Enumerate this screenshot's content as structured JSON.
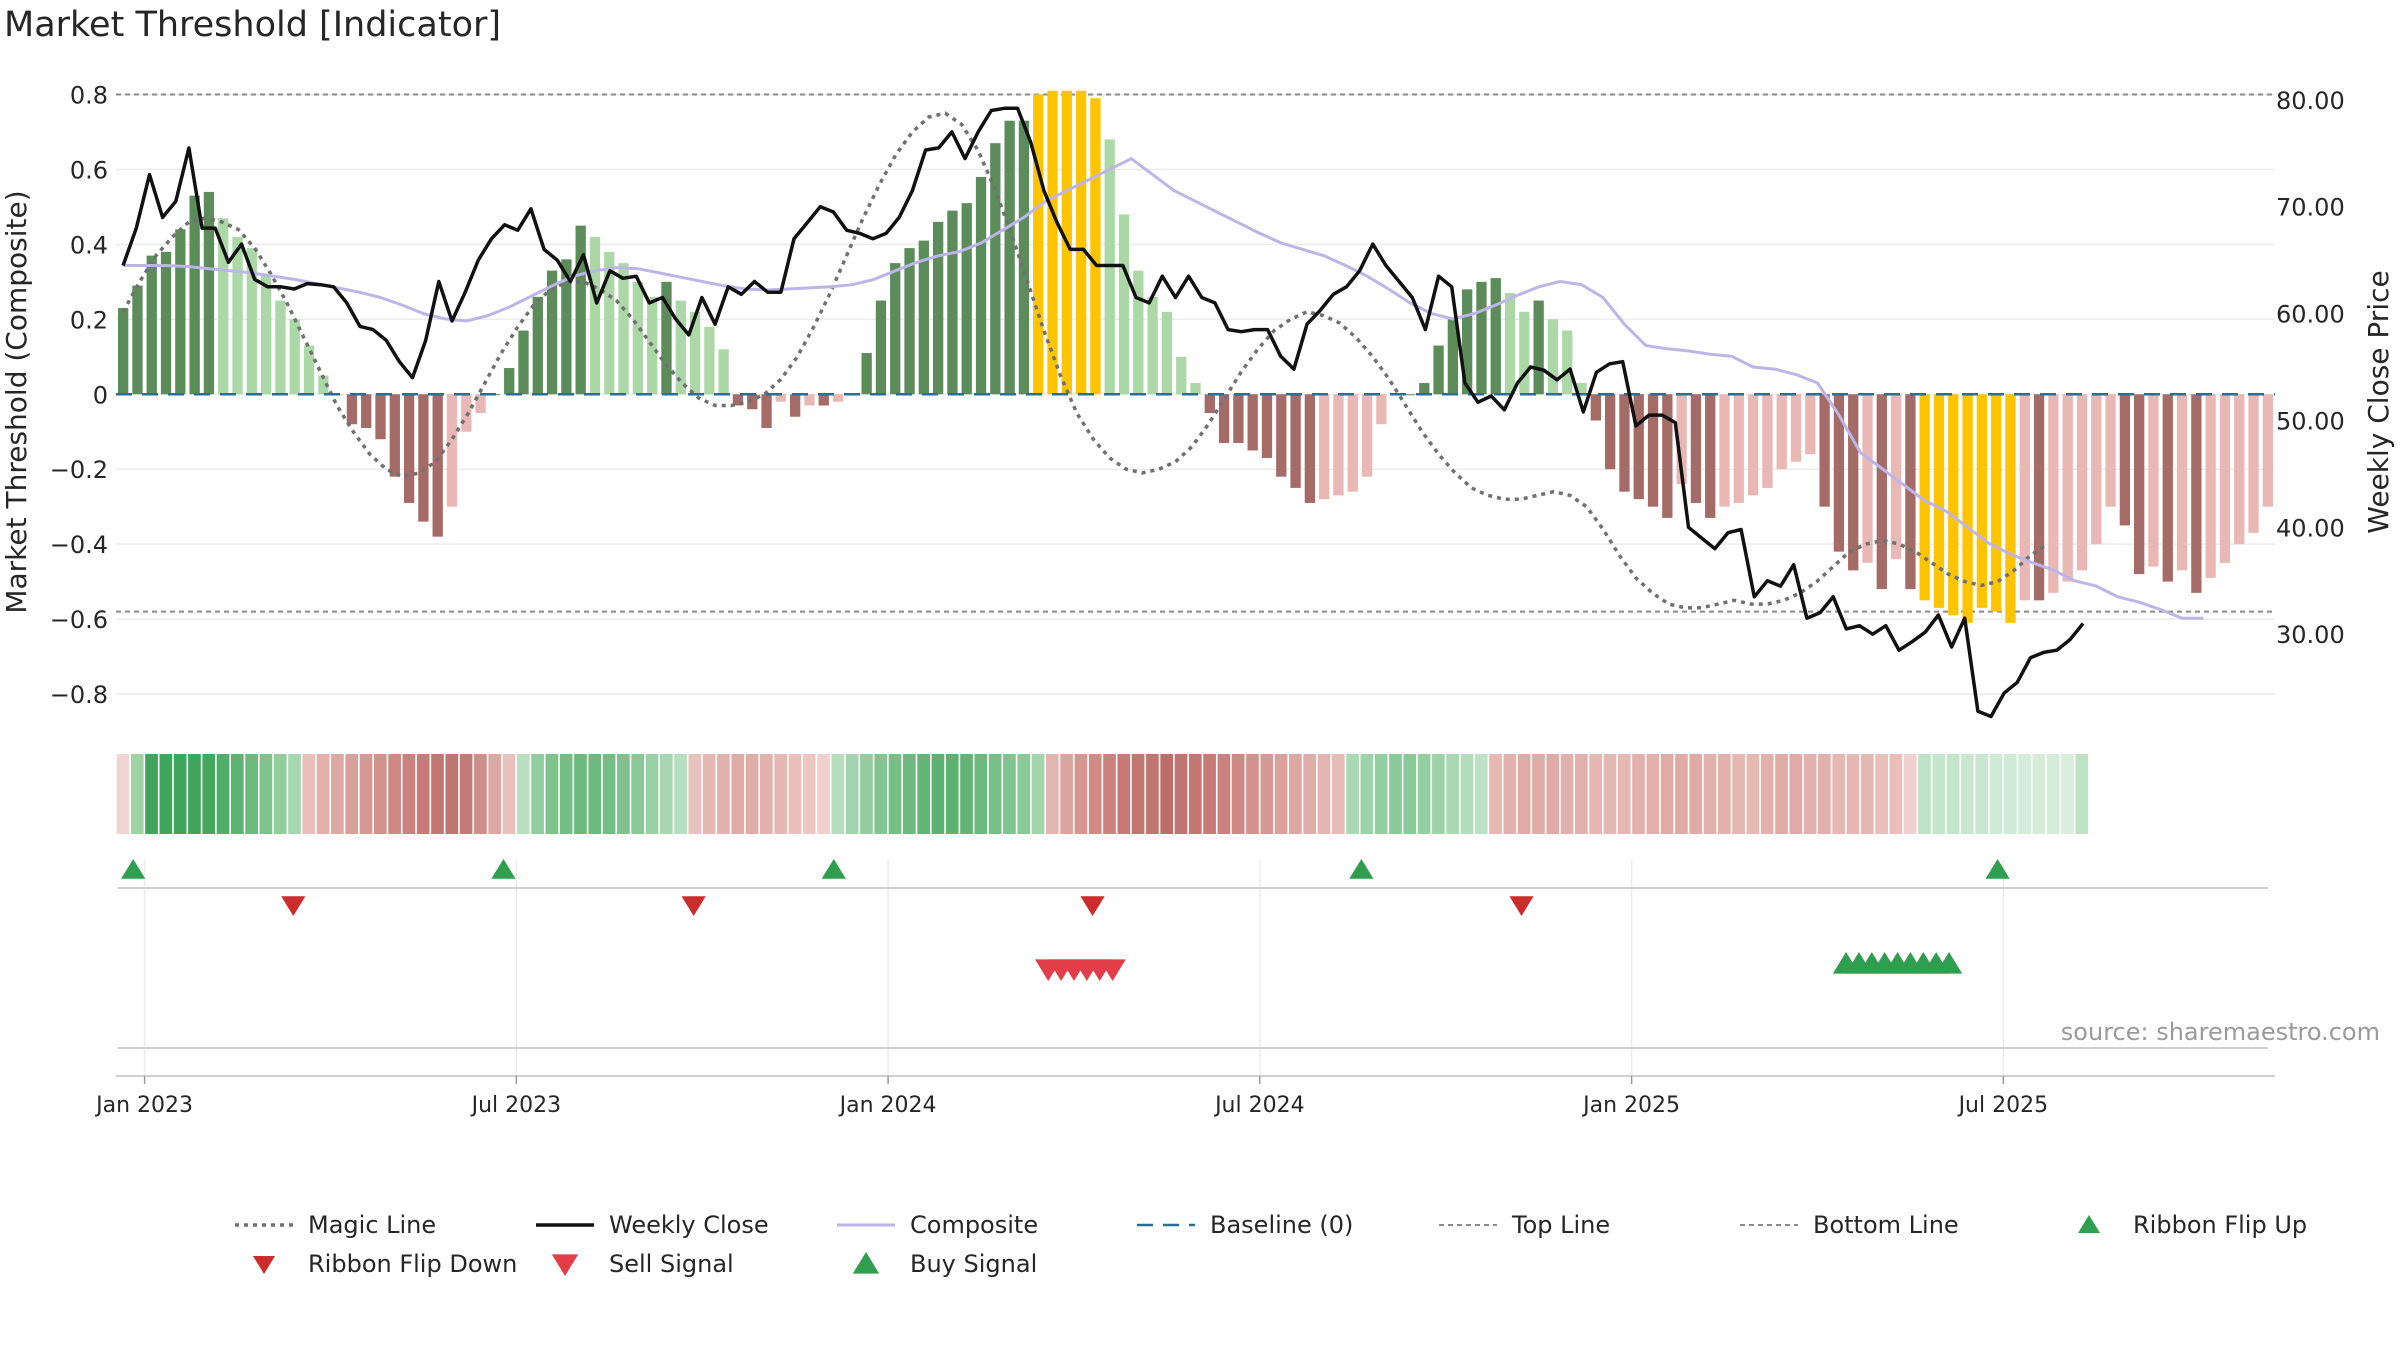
{
  "chart_data": {
    "type": "bar",
    "title": "Market Threshold [Indicator]",
    "ylabel_left": "Market Threshold (Composite)",
    "ylabel_right": "Weekly Close Price",
    "source": "source: sharemaestro.com",
    "ylim_left": [
      -0.88,
      0.86
    ],
    "ylim_right": [
      21.6,
      82.6
    ],
    "yticks_left": [
      0.8,
      0.6,
      0.4,
      0.2,
      0,
      -0.2,
      -0.4,
      -0.6,
      -0.8
    ],
    "yticklabels_left": [
      "0.8",
      "0.6",
      "0.4",
      "0.2",
      "0",
      "−0.2",
      "−0.4",
      "−0.6",
      "−0.8"
    ],
    "yticks_right": [
      80,
      70,
      60,
      50,
      40,
      30
    ],
    "yticklabels_right": [
      "80.00",
      "70.00",
      "60.00",
      "50.00",
      "40.00",
      "30.00"
    ],
    "x_ticks": [
      {
        "label": "Jan 2023",
        "week": 1.5
      },
      {
        "label": "Jul 2023",
        "week": 27.5
      },
      {
        "label": "Jan 2024",
        "week": 53.5
      },
      {
        "label": "Jul 2024",
        "week": 79.5
      },
      {
        "label": "Jan 2025",
        "week": 105.5
      },
      {
        "label": "Jul 2025",
        "week": 131.5
      }
    ],
    "top_line": 0.8,
    "bottom_line": -0.58,
    "baseline": 0,
    "composite_bars": [
      0.23,
      0.29,
      0.37,
      0.38,
      0.44,
      0.53,
      0.54,
      0.47,
      0.42,
      0.39,
      0.32,
      0.25,
      0.2,
      0.13,
      0.05,
      0,
      -0.08,
      -0.09,
      -0.12,
      -0.22,
      -0.29,
      -0.34,
      -0.38,
      -0.3,
      -0.1,
      -0.05,
      0,
      0.07,
      0.17,
      0.26,
      0.33,
      0.36,
      0.45,
      0.42,
      0.38,
      0.35,
      0.3,
      0.26,
      0.3,
      0.25,
      0.22,
      0.18,
      0.12,
      -0.03,
      -0.04,
      -0.09,
      -0.02,
      -0.06,
      -0.03,
      -0.03,
      -0.02,
      0,
      0.11,
      0.25,
      0.35,
      0.39,
      0.41,
      0.46,
      0.49,
      0.51,
      0.58,
      0.67,
      0.73,
      0.73,
      0.8,
      0.81,
      0.81,
      0.81,
      0.79,
      0.68,
      0.48,
      0.33,
      0.26,
      0.22,
      0.1,
      0.03,
      -0.05,
      -0.13,
      -0.13,
      -0.15,
      -0.17,
      -0.22,
      -0.25,
      -0.29,
      -0.28,
      -0.27,
      -0.26,
      -0.22,
      -0.08,
      0,
      0,
      0.03,
      0.13,
      0.2,
      0.28,
      0.3,
      0.31,
      0.27,
      0.22,
      0.25,
      0.2,
      0.17,
      0.03,
      -0.07,
      -0.2,
      -0.26,
      -0.28,
      -0.3,
      -0.33,
      -0.24,
      -0.29,
      -0.33,
      -0.3,
      -0.29,
      -0.27,
      -0.25,
      -0.2,
      -0.18,
      -0.16,
      -0.3,
      -0.42,
      -0.47,
      -0.45,
      -0.52,
      -0.44,
      -0.52,
      -0.55,
      -0.57,
      -0.59,
      -0.61,
      -0.57,
      -0.58,
      -0.61,
      -0.55,
      -0.55,
      -0.53,
      -0.5,
      -0.47,
      -0.4,
      -0.3,
      -0.35,
      -0.48,
      -0.46,
      -0.5,
      -0.47,
      -0.53,
      -0.49,
      -0.45,
      -0.4,
      -0.37,
      -0.3
    ],
    "magic_line": [
      0.22,
      0.3,
      0.37,
      0.42,
      0.46,
      0.47,
      0.46,
      0.44,
      0.39,
      0.32,
      0.24,
      0.15,
      0.06,
      -0.03,
      -0.1,
      -0.16,
      -0.2,
      -0.22,
      -0.21,
      -0.18,
      -0.12,
      -0.05,
      0.03,
      0.11,
      0.18,
      0.24,
      0.28,
      0.3,
      0.3,
      0.28,
      0.25,
      0.2,
      0.14,
      0.08,
      0.03,
      -0.01,
      -0.03,
      -0.03,
      -0.02,
      0,
      0.04,
      0.1,
      0.18,
      0.27,
      0.37,
      0.47,
      0.56,
      0.64,
      0.7,
      0.74,
      0.75,
      0.72,
      0.65,
      0.55,
      0.43,
      0.3,
      0.17,
      0.05,
      -0.05,
      -0.12,
      -0.17,
      -0.2,
      -0.21,
      -0.2,
      -0.18,
      -0.14,
      -0.08,
      -0.01,
      0.06,
      0.12,
      0.17,
      0.2,
      0.22,
      0.21,
      0.19,
      0.15,
      0.1,
      0.04,
      -0.03,
      -0.1,
      -0.16,
      -0.21,
      -0.25,
      -0.27,
      -0.28,
      -0.28,
      -0.27,
      -0.26,
      -0.27,
      -0.3,
      -0.36,
      -0.43,
      -0.49,
      -0.53,
      -0.56,
      -0.57,
      -0.57,
      -0.56,
      -0.55,
      -0.56,
      -0.56,
      -0.55,
      -0.53,
      -0.5,
      -0.46,
      -0.42,
      -0.4,
      -0.39,
      -0.4,
      -0.42,
      -0.45,
      -0.48,
      -0.5,
      -0.51,
      -0.5,
      -0.47,
      -0.43,
      -0.4
    ],
    "magic_line_x0_week": 0,
    "magic_line_step_weeks": 1.15,
    "weekly_close": [
      64.5,
      68,
      73,
      69,
      70.5,
      75.5,
      68,
      68,
      64.8,
      66.5,
      63.2,
      62.5,
      62.5,
      62.3,
      62.8,
      62.7,
      62.5,
      61,
      58.8,
      58.5,
      57.5,
      55.5,
      54,
      57.5,
      63,
      59.3,
      62,
      65,
      67,
      68.3,
      67.8,
      69.8,
      66,
      65,
      63,
      65.5,
      61,
      64,
      63.3,
      63.5,
      61,
      61.5,
      59.5,
      58,
      61.5,
      59,
      62.5,
      61.8,
      63,
      62,
      62,
      67,
      68.5,
      70,
      69.5,
      67.8,
      67.5,
      67,
      67.5,
      69,
      71.5,
      75.3,
      75.5,
      77,
      74.5,
      77,
      79,
      79.2,
      79.2,
      76,
      71.5,
      68.5,
      66,
      66,
      64.5,
      64.5,
      64.5,
      61.5,
      61,
      63.5,
      61.5,
      63.5,
      61.5,
      61,
      58.5,
      58.3,
      58.5,
      58.5,
      56,
      54.8,
      59,
      60.3,
      61.8,
      62.5,
      64,
      66.5,
      64.5,
      63,
      61.5,
      58.5,
      63.5,
      62.5,
      53.5,
      51.7,
      52.3,
      51,
      53.5,
      55,
      54.7,
      53.8,
      54.8,
      50.8,
      54.5,
      55.3,
      55.5,
      49.5,
      50.5,
      50.5,
      49.8,
      40,
      39,
      38,
      39.5,
      39.8,
      33.5,
      35,
      34.5,
      36.5,
      31.5,
      32,
      33.5,
      30.5,
      30.8,
      30,
      30.8,
      28.5,
      29.3,
      30.2,
      31.8,
      28.8,
      31.5,
      22.8,
      22.3,
      24.5,
      25.5,
      27.8,
      28.3,
      28.5,
      29.5,
      31
    ],
    "weekly_close_step_weeks": 0.92,
    "composite_line": [
      64.5,
      64.5,
      64.5,
      64.4,
      64.2,
      64,
      63.8,
      63.5,
      63.2,
      62.8,
      62.4,
      62,
      61.5,
      60.8,
      60,
      59.5,
      59.3,
      59.8,
      60.6,
      61.6,
      62.6,
      63.5,
      64,
      64.3,
      64.2,
      63.8,
      63.4,
      63,
      62.6,
      62.3,
      62.2,
      62.3,
      62.4,
      62.5,
      62.7,
      63.2,
      64,
      64.8,
      65.4,
      65.8,
      66.6,
      67.8,
      69,
      70.5,
      71.5,
      72.5,
      73.5,
      74.5,
      73,
      71.5,
      70.5,
      69.5,
      68.5,
      67.5,
      66.6,
      66,
      65.4,
      64.5,
      63.5,
      62.3,
      61,
      60,
      59.5,
      60,
      60.8,
      61.7,
      62.5,
      63,
      62.7,
      61.5,
      59,
      57,
      56.7,
      56.5,
      56.2,
      56,
      55,
      54.8,
      54.3,
      53.5,
      50.5,
      47,
      45.5,
      44,
      42.5,
      41.5,
      40,
      38.5,
      37.5,
      36.7,
      36,
      35,
      34.5,
      33.5,
      33,
      32.3,
      31.5,
      31.5
    ],
    "composite_line_step_weeks": 1.5,
    "ribbon_fills": [
      "#efd5d3",
      "#9fd3a4",
      "#3fa45c",
      "#3fa45c",
      "#3fa45c",
      "#3fa45c",
      "#45a760",
      "#52ad6a",
      "#5eb373",
      "#6cba7d",
      "#7ec38d",
      "#92cd9e",
      "#a7d7b0",
      "#e8bfbb",
      "#e3b0ac",
      "#dfa8a3",
      "#d9a19c",
      "#d69995",
      "#d3928d",
      "#cf8985",
      "#cb817d",
      "#c87a76",
      "#c47671",
      "#c07570",
      "#c47a76",
      "#cf8e8a",
      "#dba8a4",
      "#e8c2bf",
      "#b8dfc0",
      "#92cda0",
      "#7ec38e",
      "#73be85",
      "#6cba7f",
      "#6cba7f",
      "#73be85",
      "#7ec38e",
      "#8bc898",
      "#99d0a5",
      "#a7d7b1",
      "#b6dec0",
      "#e8c2bf",
      "#e5b8b4",
      "#e2b2ae",
      "#dfaca8",
      "#dfaca8",
      "#e2b2ae",
      "#e5b8b4",
      "#e8bfbb",
      "#ebc6c3",
      "#efd0cd",
      "#b5ddbe",
      "#a2d5ad",
      "#92cda0",
      "#83c592",
      "#76bf87",
      "#6cba7f",
      "#63b577",
      "#5db272",
      "#5db272",
      "#63b577",
      "#6cba7f",
      "#76bf87",
      "#80c48f",
      "#8ac998",
      "#a2d5ad",
      "#e4b4b0",
      "#dda39e",
      "#d69592",
      "#d08b87",
      "#cb817d",
      "#c87a76",
      "#c47671",
      "#c07570",
      "#bd6e69",
      "#c07570",
      "#c47671",
      "#c87a76",
      "#cb817d",
      "#cf8985",
      "#d3928d",
      "#d69995",
      "#daa09c",
      "#dda7a3",
      "#e0aeaa",
      "#e4b5b1",
      "#e7bbb8",
      "#a9d8b3",
      "#9ed3aa",
      "#94cea1",
      "#8bc998",
      "#8bc998",
      "#94cea1",
      "#9ed3aa",
      "#a9d8b3",
      "#b3dcbc",
      "#bde1c5",
      "#e6b8b4",
      "#e3b1ad",
      "#e0aba7",
      "#e0aba7",
      "#e0aba7",
      "#e3b1ad",
      "#e3b1ad",
      "#e6b8b4",
      "#e6b8b4",
      "#e6b8b4",
      "#e3b1ad",
      "#e3b1ad",
      "#e0aba7",
      "#e0aba7",
      "#e0aba7",
      "#e3b1ad",
      "#e3b1ad",
      "#e6b8b4",
      "#e6b8b4",
      "#e3b1ad",
      "#e0aba7",
      "#e0aba7",
      "#e3b1ad",
      "#e3b1ad",
      "#e6b8b4",
      "#e6b8b4",
      "#e6b8b4",
      "#e9bebb",
      "#e9bebb",
      "#efd2cf",
      "#bde2c5",
      "#c4e5cc",
      "#c4e5cc",
      "#c9e7d0",
      "#c9e7d0",
      "#cfead5",
      "#cfead5",
      "#d4ecd9",
      "#d4ecd9",
      "#d4ecd9",
      "#d9eedd",
      "#bde2c5"
    ],
    "ribbon_flip_up_weeks": [
      0.7,
      26.6,
      49.7,
      86.6,
      131.1
    ],
    "ribbon_flip_down_weeks": [
      11.9,
      39.9,
      67.8,
      97.8
    ],
    "sell_signal_weeks": [
      64.7,
      65.6,
      66.5,
      67.4,
      68.3,
      69.2
    ],
    "buy_signal_weeks": [
      120.5,
      121.4,
      122.3,
      123.2,
      124.1,
      125,
      125.9,
      126.8,
      127.7
    ],
    "legend": [
      "Magic Line",
      "Weekly Close",
      "Composite",
      "Baseline (0)",
      "Top Line",
      "Bottom Line",
      "Ribbon Flip Up",
      "Ribbon Flip Down",
      "Sell Signal",
      "Buy Signal"
    ],
    "colors": {
      "dark_green": "#5b8c5a",
      "light_green": "#acd8a7",
      "dark_red": "#a56b67",
      "light_red": "#e9b8b5",
      "gold": "#ffc400",
      "weekly_close": "#111111",
      "composite_line": "#bdb5e8",
      "magic_line": "#707070",
      "baseline": "#2c6e8f",
      "ref_lines": "#8a8a8a",
      "flip_up": "#2f9e4f",
      "flip_down": "#cc2c2c",
      "sell": "#e23d48",
      "buy": "#2f9e4f"
    }
  }
}
